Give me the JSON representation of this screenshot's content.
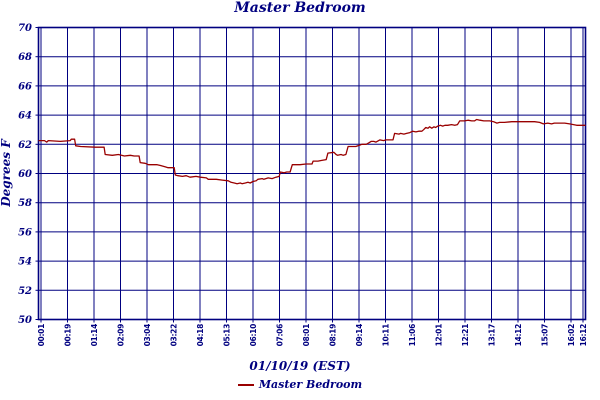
{
  "chart": {
    "title": "Master Bedroom",
    "x_axis_title": "01/10/19 (EST)",
    "y_axis_title": "Degrees F",
    "legend": {
      "label": "Master Bedroom"
    },
    "colors": {
      "grid": "#000080",
      "axis": "#000080",
      "text": "#000080",
      "line": "#990000",
      "background": "#ffffff"
    }
  },
  "chart_data": {
    "type": "line",
    "title": "Master Bedroom",
    "xlabel": "01/10/19 (EST)",
    "ylabel": "Degrees F",
    "ylim": [
      50,
      70
    ],
    "y_ticks": [
      50,
      52,
      54,
      56,
      58,
      60,
      62,
      64,
      66,
      68,
      70
    ],
    "x_tick_labels": [
      "00:01",
      "00:19",
      "01:14",
      "02:09",
      "03:04",
      "03:22",
      "04:18",
      "05:13",
      "06:10",
      "07:06",
      "08:01",
      "08:19",
      "09:14",
      "10:11",
      "11:06",
      "12:01",
      "12:21",
      "13:17",
      "14:12",
      "15:07",
      "16:02",
      "16:12"
    ],
    "grid": true,
    "legend_position": "bottom",
    "series": [
      {
        "name": "Master Bedroom",
        "color": "#990000",
        "note": "points are [fraction-across-x-axis, degrees F]; x axis spans 00:01 to 16:12 on 01/10/19",
        "points": [
          [
            0.0,
            62.25
          ],
          [
            0.011,
            62.25
          ],
          [
            0.015,
            62.15
          ],
          [
            0.018,
            62.25
          ],
          [
            0.04,
            62.2
          ],
          [
            0.058,
            62.25
          ],
          [
            0.06,
            62.35
          ],
          [
            0.066,
            62.35
          ],
          [
            0.068,
            61.9
          ],
          [
            0.077,
            61.85
          ],
          [
            0.104,
            61.8
          ],
          [
            0.12,
            61.8
          ],
          [
            0.122,
            61.3
          ],
          [
            0.135,
            61.25
          ],
          [
            0.146,
            61.3
          ],
          [
            0.157,
            61.2
          ],
          [
            0.168,
            61.25
          ],
          [
            0.175,
            61.2
          ],
          [
            0.184,
            61.2
          ],
          [
            0.186,
            60.75
          ],
          [
            0.195,
            60.7
          ],
          [
            0.201,
            60.6
          ],
          [
            0.217,
            60.6
          ],
          [
            0.223,
            60.55
          ],
          [
            0.232,
            60.45
          ],
          [
            0.237,
            60.4
          ],
          [
            0.248,
            60.4
          ],
          [
            0.25,
            59.9
          ],
          [
            0.255,
            59.85
          ],
          [
            0.263,
            59.8
          ],
          [
            0.27,
            59.85
          ],
          [
            0.277,
            59.75
          ],
          [
            0.288,
            59.8
          ],
          [
            0.296,
            59.75
          ],
          [
            0.307,
            59.7
          ],
          [
            0.31,
            59.6
          ],
          [
            0.325,
            59.6
          ],
          [
            0.336,
            59.55
          ],
          [
            0.347,
            59.5
          ],
          [
            0.352,
            59.4
          ],
          [
            0.358,
            59.35
          ],
          [
            0.363,
            59.3
          ],
          [
            0.369,
            59.35
          ],
          [
            0.372,
            59.3
          ],
          [
            0.378,
            59.35
          ],
          [
            0.383,
            59.4
          ],
          [
            0.387,
            59.35
          ],
          [
            0.392,
            59.45
          ],
          [
            0.398,
            59.5
          ],
          [
            0.401,
            59.6
          ],
          [
            0.409,
            59.65
          ],
          [
            0.412,
            59.6
          ],
          [
            0.42,
            59.7
          ],
          [
            0.427,
            59.65
          ],
          [
            0.434,
            59.75
          ],
          [
            0.44,
            59.8
          ],
          [
            0.442,
            60.1
          ],
          [
            0.449,
            60.05
          ],
          [
            0.454,
            60.1
          ],
          [
            0.46,
            60.1
          ],
          [
            0.464,
            60.6
          ],
          [
            0.478,
            60.6
          ],
          [
            0.489,
            60.65
          ],
          [
            0.5,
            60.65
          ],
          [
            0.502,
            60.85
          ],
          [
            0.511,
            60.85
          ],
          [
            0.518,
            60.9
          ],
          [
            0.526,
            60.95
          ],
          [
            0.529,
            61.4
          ],
          [
            0.54,
            61.45
          ],
          [
            0.544,
            61.3
          ],
          [
            0.547,
            61.25
          ],
          [
            0.553,
            61.3
          ],
          [
            0.557,
            61.25
          ],
          [
            0.562,
            61.3
          ],
          [
            0.566,
            61.85
          ],
          [
            0.58,
            61.85
          ],
          [
            0.588,
            61.95
          ],
          [
            0.591,
            62.0
          ],
          [
            0.599,
            62.0
          ],
          [
            0.604,
            62.1
          ],
          [
            0.608,
            62.2
          ],
          [
            0.613,
            62.2
          ],
          [
            0.617,
            62.15
          ],
          [
            0.624,
            62.3
          ],
          [
            0.631,
            62.25
          ],
          [
            0.635,
            62.3
          ],
          [
            0.648,
            62.3
          ],
          [
            0.651,
            62.75
          ],
          [
            0.659,
            62.7
          ],
          [
            0.662,
            62.75
          ],
          [
            0.668,
            62.7
          ],
          [
            0.673,
            62.75
          ],
          [
            0.679,
            62.8
          ],
          [
            0.684,
            62.9
          ],
          [
            0.69,
            62.85
          ],
          [
            0.695,
            62.9
          ],
          [
            0.701,
            62.9
          ],
          [
            0.704,
            63.0
          ],
          [
            0.708,
            63.15
          ],
          [
            0.712,
            63.1
          ],
          [
            0.715,
            63.2
          ],
          [
            0.719,
            63.1
          ],
          [
            0.723,
            63.2
          ],
          [
            0.726,
            63.15
          ],
          [
            0.73,
            63.25
          ],
          [
            0.735,
            63.3
          ],
          [
            0.739,
            63.25
          ],
          [
            0.743,
            63.3
          ],
          [
            0.748,
            63.3
          ],
          [
            0.755,
            63.35
          ],
          [
            0.761,
            63.3
          ],
          [
            0.766,
            63.35
          ],
          [
            0.77,
            63.6
          ],
          [
            0.779,
            63.6
          ],
          [
            0.785,
            63.65
          ],
          [
            0.792,
            63.6
          ],
          [
            0.797,
            63.6
          ],
          [
            0.801,
            63.7
          ],
          [
            0.807,
            63.65
          ],
          [
            0.814,
            63.6
          ],
          [
            0.825,
            63.6
          ],
          [
            0.832,
            63.55
          ],
          [
            0.838,
            63.45
          ],
          [
            0.843,
            63.5
          ],
          [
            0.852,
            63.5
          ],
          [
            0.865,
            63.55
          ],
          [
            0.88,
            63.55
          ],
          [
            0.894,
            63.55
          ],
          [
            0.907,
            63.55
          ],
          [
            0.916,
            63.5
          ],
          [
            0.923,
            63.4
          ],
          [
            0.931,
            63.45
          ],
          [
            0.938,
            63.4
          ],
          [
            0.943,
            63.45
          ],
          [
            0.953,
            63.45
          ],
          [
            0.962,
            63.45
          ],
          [
            0.971,
            63.4
          ],
          [
            0.978,
            63.35
          ],
          [
            0.984,
            63.3
          ],
          [
            0.991,
            63.3
          ],
          [
            1.0,
            63.3
          ]
        ]
      }
    ]
  }
}
